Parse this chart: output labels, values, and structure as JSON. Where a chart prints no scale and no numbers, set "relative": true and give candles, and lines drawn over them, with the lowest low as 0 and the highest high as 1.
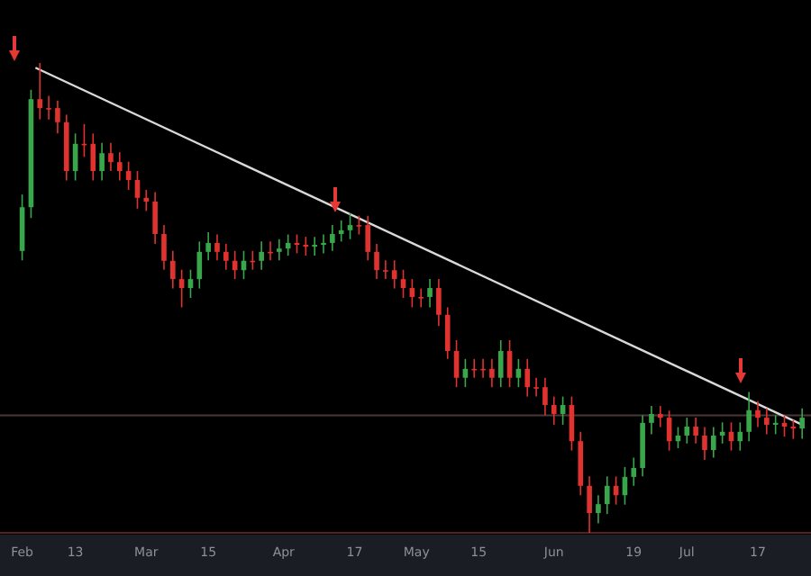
{
  "chart_data": {
    "type": "candlestick",
    "relative": true,
    "xlim": [
      "--01-27",
      "--07-29"
    ],
    "xticks": [
      {
        "value": "--02-01",
        "label": "Feb"
      },
      {
        "value": "--02-13",
        "label": "13"
      },
      {
        "value": "--03-01",
        "label": "Mar"
      },
      {
        "value": "--03-15",
        "label": "15"
      },
      {
        "value": "--04-01",
        "label": "Apr"
      },
      {
        "value": "--04-17",
        "label": "17"
      },
      {
        "value": "--05-01",
        "label": "May"
      },
      {
        "value": "--05-15",
        "label": "15"
      },
      {
        "value": "--06-01",
        "label": "Jun"
      },
      {
        "value": "--06-19",
        "label": "19"
      },
      {
        "value": "--07-01",
        "label": "Jul"
      },
      {
        "value": "--07-17",
        "label": "17"
      }
    ],
    "tick_labels": "x",
    "x": [
      "--02-01",
      "--02-03",
      "--02-05",
      "--02-07",
      "--02-09",
      "--02-11",
      "--02-13",
      "--02-15",
      "--02-17",
      "--02-19",
      "--02-21",
      "--02-23",
      "--02-25",
      "--02-27",
      "--03-01",
      "--03-03",
      "--03-05",
      "--03-07",
      "--03-09",
      "--03-11",
      "--03-13",
      "--03-15",
      "--03-17",
      "--03-19",
      "--03-21",
      "--03-23",
      "--03-25",
      "--03-27",
      "--03-29",
      "--03-31",
      "--04-02",
      "--04-04",
      "--04-06",
      "--04-08",
      "--04-10",
      "--04-12",
      "--04-14",
      "--04-16",
      "--04-18",
      "--04-20",
      "--04-22",
      "--04-24",
      "--04-26",
      "--04-28",
      "--04-30",
      "--05-02",
      "--05-04",
      "--05-06",
      "--05-08",
      "--05-10",
      "--05-12",
      "--05-14",
      "--05-16",
      "--05-18",
      "--05-20",
      "--05-22",
      "--05-24",
      "--05-26",
      "--05-28",
      "--05-30",
      "--06-01",
      "--06-03",
      "--06-05",
      "--06-07",
      "--06-09",
      "--06-11",
      "--06-13",
      "--06-15",
      "--06-17",
      "--06-19",
      "--06-21",
      "--06-23",
      "--06-25",
      "--06-27",
      "--06-29",
      "--07-01",
      "--07-03",
      "--07-05",
      "--07-07",
      "--07-09",
      "--07-11",
      "--07-13",
      "--07-15",
      "--07-17",
      "--07-19",
      "--07-21",
      "--07-23",
      "--07-25",
      "--07-27"
    ],
    "ohlc": [
      [
        0.6,
        0.72,
        0.58,
        0.693
      ],
      [
        0.693,
        0.943,
        0.67,
        0.923
      ],
      [
        0.923,
        1.0,
        0.88,
        0.904
      ],
      [
        0.904,
        0.93,
        0.88,
        0.904
      ],
      [
        0.904,
        0.92,
        0.85,
        0.874
      ],
      [
        0.874,
        0.89,
        0.75,
        0.77
      ],
      [
        0.77,
        0.85,
        0.75,
        0.828
      ],
      [
        0.828,
        0.87,
        0.8,
        0.828
      ],
      [
        0.828,
        0.85,
        0.75,
        0.77
      ],
      [
        0.77,
        0.83,
        0.75,
        0.808
      ],
      [
        0.808,
        0.83,
        0.77,
        0.789
      ],
      [
        0.789,
        0.81,
        0.75,
        0.77
      ],
      [
        0.77,
        0.79,
        0.73,
        0.751
      ],
      [
        0.751,
        0.77,
        0.69,
        0.713
      ],
      [
        0.713,
        0.73,
        0.685,
        0.705
      ],
      [
        0.705,
        0.725,
        0.615,
        0.636
      ],
      [
        0.636,
        0.655,
        0.56,
        0.579
      ],
      [
        0.579,
        0.6,
        0.52,
        0.54
      ],
      [
        0.54,
        0.56,
        0.48,
        0.521
      ],
      [
        0.521,
        0.56,
        0.5,
        0.54
      ],
      [
        0.54,
        0.62,
        0.52,
        0.598
      ],
      [
        0.598,
        0.64,
        0.58,
        0.617
      ],
      [
        0.617,
        0.635,
        0.58,
        0.598
      ],
      [
        0.598,
        0.615,
        0.56,
        0.579
      ],
      [
        0.579,
        0.6,
        0.54,
        0.559
      ],
      [
        0.559,
        0.6,
        0.54,
        0.579
      ],
      [
        0.579,
        0.6,
        0.56,
        0.579
      ],
      [
        0.579,
        0.62,
        0.56,
        0.598
      ],
      [
        0.598,
        0.62,
        0.58,
        0.598
      ],
      [
        0.598,
        0.625,
        0.58,
        0.605
      ],
      [
        0.605,
        0.635,
        0.59,
        0.617
      ],
      [
        0.617,
        0.635,
        0.595,
        0.613
      ],
      [
        0.613,
        0.63,
        0.59,
        0.609
      ],
      [
        0.609,
        0.63,
        0.59,
        0.613
      ],
      [
        0.613,
        0.635,
        0.595,
        0.617
      ],
      [
        0.617,
        0.655,
        0.6,
        0.636
      ],
      [
        0.636,
        0.665,
        0.62,
        0.644
      ],
      [
        0.644,
        0.68,
        0.625,
        0.655
      ],
      [
        0.655,
        0.675,
        0.635,
        0.655
      ],
      [
        0.655,
        0.675,
        0.58,
        0.598
      ],
      [
        0.598,
        0.615,
        0.54,
        0.559
      ],
      [
        0.559,
        0.58,
        0.54,
        0.559
      ],
      [
        0.559,
        0.58,
        0.52,
        0.54
      ],
      [
        0.54,
        0.56,
        0.5,
        0.521
      ],
      [
        0.521,
        0.54,
        0.48,
        0.502
      ],
      [
        0.502,
        0.52,
        0.48,
        0.502
      ],
      [
        0.502,
        0.54,
        0.48,
        0.521
      ],
      [
        0.521,
        0.54,
        0.44,
        0.464
      ],
      [
        0.464,
        0.48,
        0.37,
        0.387
      ],
      [
        0.387,
        0.41,
        0.31,
        0.33
      ],
      [
        0.33,
        0.37,
        0.31,
        0.349
      ],
      [
        0.349,
        0.37,
        0.33,
        0.349
      ],
      [
        0.349,
        0.37,
        0.33,
        0.349
      ],
      [
        0.349,
        0.37,
        0.31,
        0.33
      ],
      [
        0.33,
        0.41,
        0.31,
        0.387
      ],
      [
        0.387,
        0.41,
        0.31,
        0.33
      ],
      [
        0.33,
        0.37,
        0.31,
        0.349
      ],
      [
        0.349,
        0.37,
        0.29,
        0.31
      ],
      [
        0.31,
        0.33,
        0.29,
        0.31
      ],
      [
        0.31,
        0.33,
        0.25,
        0.272
      ],
      [
        0.272,
        0.29,
        0.23,
        0.253
      ],
      [
        0.253,
        0.29,
        0.23,
        0.272
      ],
      [
        0.272,
        0.29,
        0.175,
        0.195
      ],
      [
        0.195,
        0.215,
        0.08,
        0.1
      ],
      [
        0.1,
        0.12,
        0.0,
        0.042
      ],
      [
        0.042,
        0.08,
        0.02,
        0.061
      ],
      [
        0.061,
        0.12,
        0.04,
        0.1
      ],
      [
        0.1,
        0.12,
        0.06,
        0.08
      ],
      [
        0.08,
        0.14,
        0.06,
        0.119
      ],
      [
        0.119,
        0.16,
        0.1,
        0.138
      ],
      [
        0.138,
        0.25,
        0.12,
        0.234
      ],
      [
        0.234,
        0.27,
        0.21,
        0.253
      ],
      [
        0.253,
        0.27,
        0.225,
        0.245
      ],
      [
        0.245,
        0.26,
        0.175,
        0.195
      ],
      [
        0.195,
        0.225,
        0.18,
        0.207
      ],
      [
        0.207,
        0.245,
        0.19,
        0.226
      ],
      [
        0.226,
        0.245,
        0.19,
        0.207
      ],
      [
        0.207,
        0.225,
        0.155,
        0.176
      ],
      [
        0.176,
        0.225,
        0.16,
        0.207
      ],
      [
        0.207,
        0.235,
        0.19,
        0.215
      ],
      [
        0.215,
        0.235,
        0.175,
        0.195
      ],
      [
        0.195,
        0.235,
        0.175,
        0.215
      ],
      [
        0.215,
        0.3,
        0.195,
        0.261
      ],
      [
        0.261,
        0.28,
        0.225,
        0.245
      ],
      [
        0.245,
        0.265,
        0.21,
        0.23
      ],
      [
        0.23,
        0.25,
        0.21,
        0.234
      ],
      [
        0.234,
        0.25,
        0.205,
        0.226
      ],
      [
        0.226,
        0.24,
        0.2,
        0.222
      ],
      [
        0.222,
        0.265,
        0.2,
        0.245
      ]
    ],
    "colors": [
      "#3aa64c",
      "#3aa64c",
      "#e0322f",
      "#e0322f",
      "#e0322f",
      "#e0322f",
      "#3aa64c",
      "#e0322f",
      "#e0322f",
      "#3aa64c",
      "#e0322f",
      "#e0322f",
      "#e0322f",
      "#e0322f",
      "#e0322f",
      "#e0322f",
      "#e0322f",
      "#e0322f",
      "#e0322f",
      "#3aa64c",
      "#3aa64c",
      "#3aa64c",
      "#e0322f",
      "#e0322f",
      "#e0322f",
      "#3aa64c",
      "#e0322f",
      "#3aa64c",
      "#e0322f",
      "#3aa64c",
      "#3aa64c",
      "#e0322f",
      "#e0322f",
      "#3aa64c",
      "#3aa64c",
      "#3aa64c",
      "#3aa64c",
      "#3aa64c",
      "#e0322f",
      "#e0322f",
      "#e0322f",
      "#e0322f",
      "#e0322f",
      "#e0322f",
      "#e0322f",
      "#e0322f",
      "#3aa64c",
      "#e0322f",
      "#e0322f",
      "#e0322f",
      "#3aa64c",
      "#e0322f",
      "#e0322f",
      "#e0322f",
      "#3aa64c",
      "#e0322f",
      "#3aa64c",
      "#e0322f",
      "#e0322f",
      "#e0322f",
      "#e0322f",
      "#3aa64c",
      "#e0322f",
      "#e0322f",
      "#e0322f",
      "#3aa64c",
      "#3aa64c",
      "#e0322f",
      "#3aa64c",
      "#3aa64c",
      "#3aa64c",
      "#3aa64c",
      "#e0322f",
      "#e0322f",
      "#3aa64c",
      "#3aa64c",
      "#e0322f",
      "#e0322f",
      "#3aa64c",
      "#3aa64c",
      "#e0322f",
      "#3aa64c",
      "#3aa64c",
      "#e0322f",
      "#e0322f",
      "#3aa64c",
      "#e0322f",
      "#e0322f",
      "#3aa64c"
    ],
    "series": [
      {
        "type": "line",
        "x": [
          "--02-04",
          "--07-27"
        ],
        "values": [
          0.99,
          0.23
        ],
        "color": "#d9d9d9"
      }
    ],
    "ref_lines": [
      {
        "axis": "y",
        "value": 0.25,
        "color": "#4a3838"
      }
    ]
  }
}
